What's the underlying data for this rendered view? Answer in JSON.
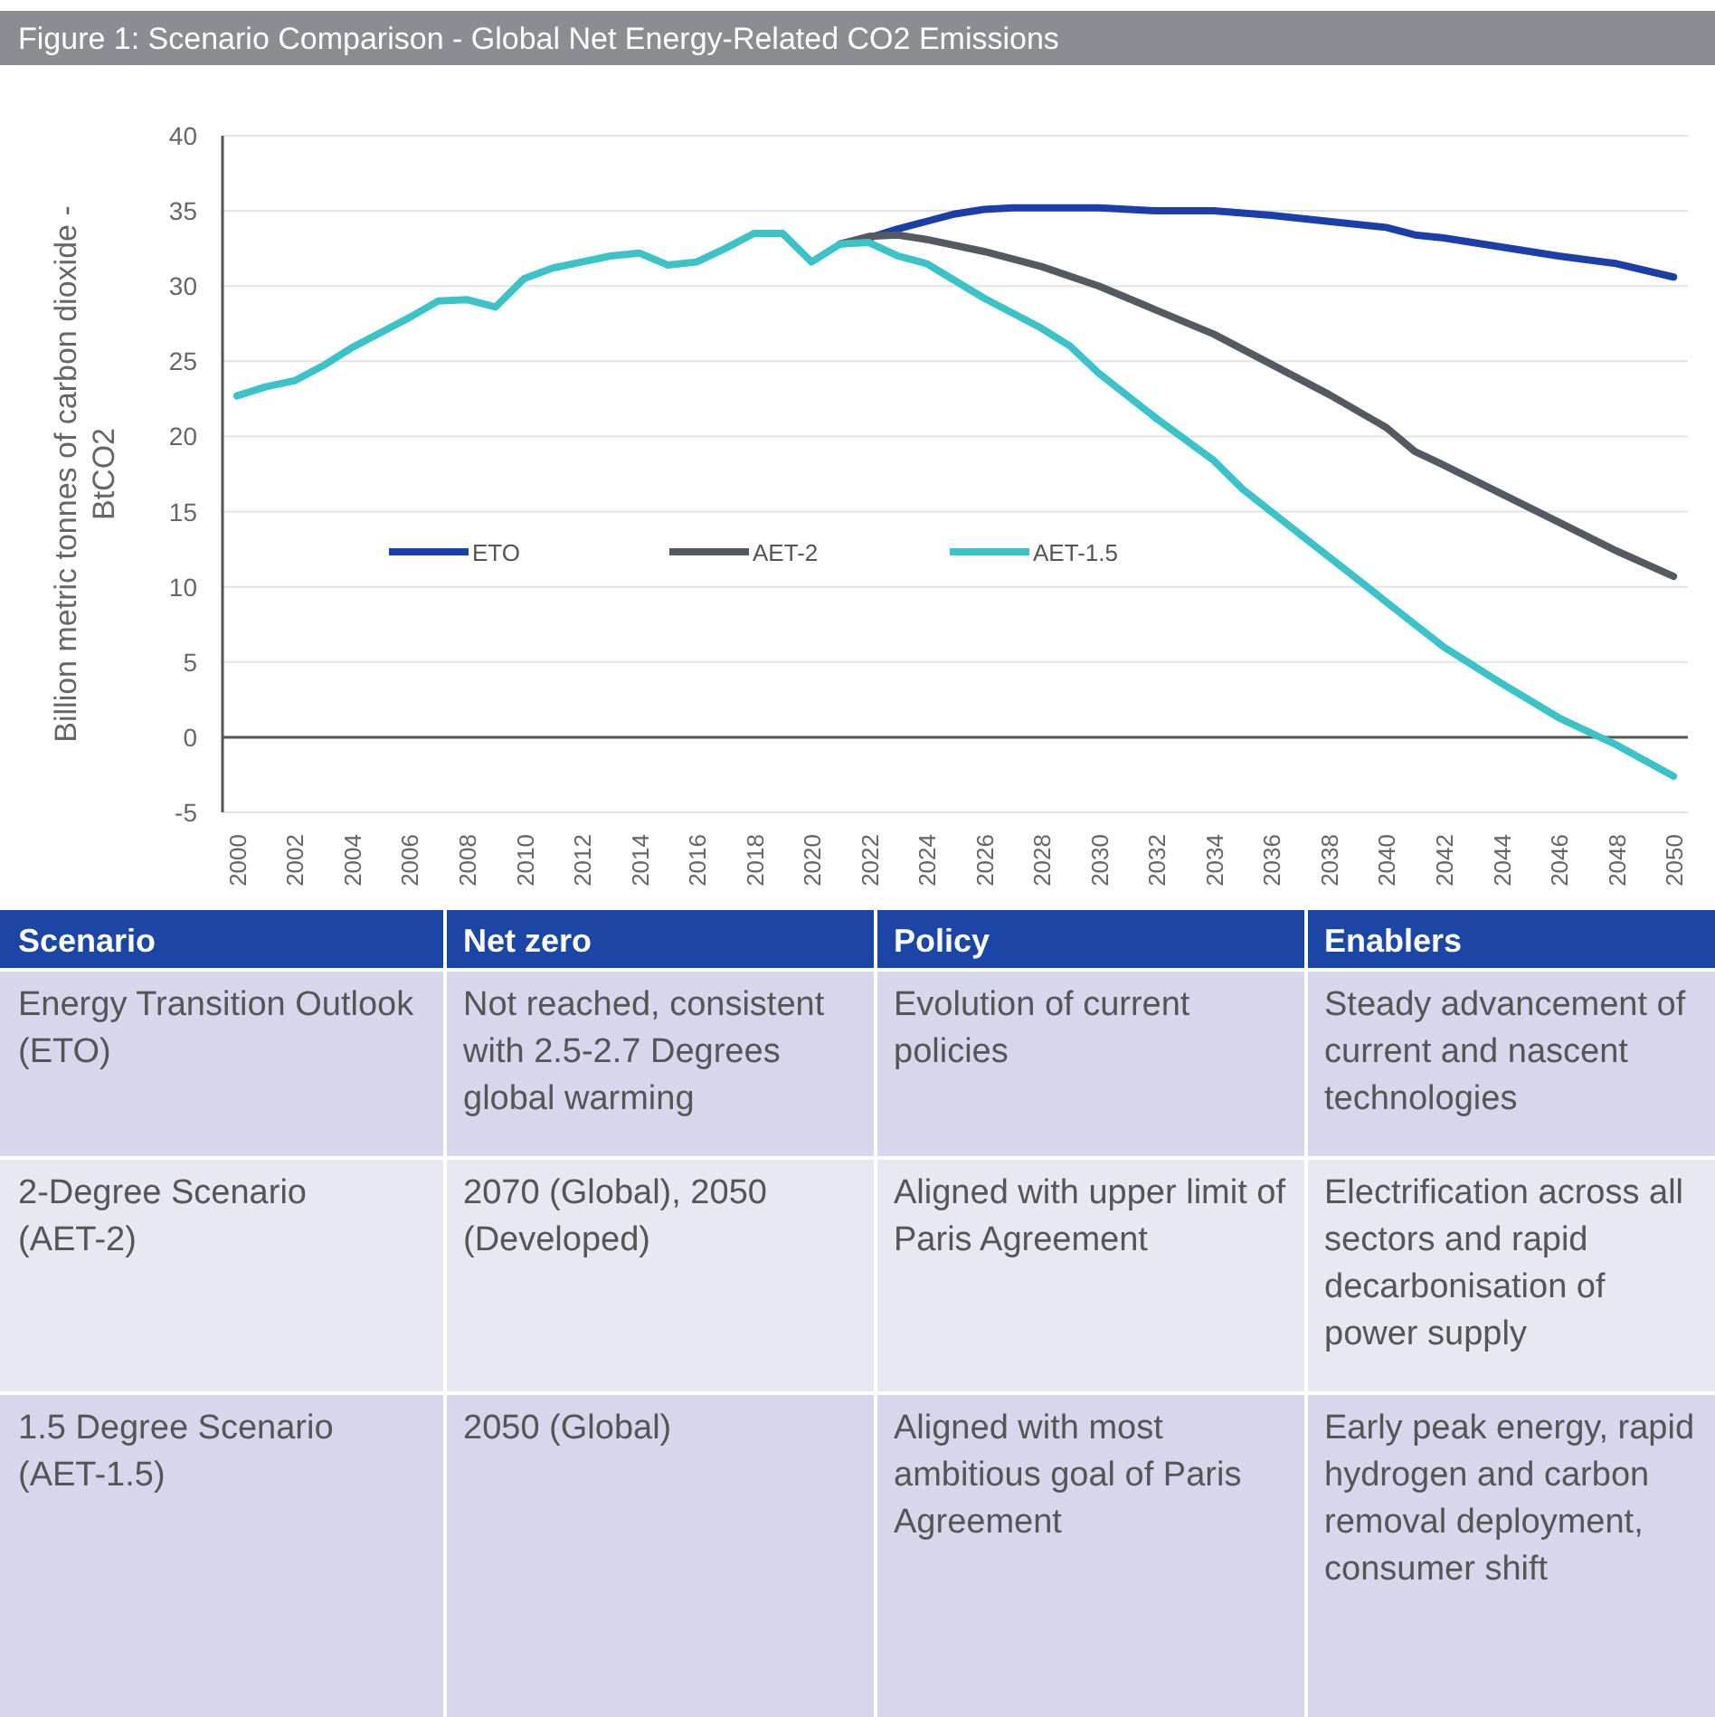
{
  "chart_data": [
    {
      "type": "line",
      "title": "Figure 1: Scenario Comparison - Global Net Energy-Related CO2 Emissions",
      "ylabel": "Billion metric tonnes of carbon dioxide - BtCO2",
      "xlim": [
        1999.5,
        2050.5
      ],
      "xticks": [
        2000,
        2002,
        2004,
        2006,
        2008,
        2010,
        2012,
        2014,
        2016,
        2018,
        2020,
        2022,
        2024,
        2026,
        2028,
        2030,
        2032,
        2034,
        2036,
        2038,
        2040,
        2042,
        2044,
        2046,
        2048,
        2050
      ],
      "ylim": [
        -5,
        40
      ],
      "yticks": [
        -5,
        0,
        5,
        10,
        15,
        20,
        25,
        30,
        35,
        40
      ],
      "grid": "y",
      "legend": "center",
      "line_style": "solid",
      "marker": "none",
      "ref_lines": [
        {
          "axis": "y",
          "value": 0,
          "label": null,
          "color": "#555555"
        }
      ],
      "series": [
        {
          "name": "ETO",
          "color": "#1a3fa8",
          "x": [
            2021,
            2022,
            2023,
            2024,
            2025,
            2026,
            2027,
            2028,
            2030,
            2032,
            2034,
            2036,
            2038,
            2040,
            2041,
            2042,
            2044,
            2046,
            2048,
            2050
          ],
          "values": [
            32.8,
            33.2,
            33.8,
            34.3,
            34.8,
            35.1,
            35.2,
            35.2,
            35.2,
            35.0,
            35.0,
            34.7,
            34.3,
            33.9,
            33.4,
            33.2,
            32.6,
            32.0,
            31.5,
            30.6
          ]
        },
        {
          "name": "AET-2",
          "color": "#545a62",
          "x": [
            2021,
            2022,
            2023,
            2024,
            2026,
            2028,
            2030,
            2032,
            2034,
            2036,
            2038,
            2040,
            2041,
            2042,
            2044,
            2046,
            2048,
            2050
          ],
          "values": [
            32.8,
            33.3,
            33.4,
            33.1,
            32.3,
            31.3,
            30.0,
            28.4,
            26.8,
            24.8,
            22.8,
            20.6,
            19.0,
            18.1,
            16.2,
            14.3,
            12.4,
            10.7
          ]
        },
        {
          "name": "AET-1.5",
          "color": "#3cc3c8",
          "x": [
            2000,
            2001,
            2002,
            2003,
            2004,
            2005,
            2006,
            2007,
            2008,
            2009,
            2010,
            2011,
            2012,
            2013,
            2014,
            2015,
            2016,
            2017,
            2018,
            2019,
            2020,
            2021,
            2022,
            2023,
            2024,
            2026,
            2028,
            2029,
            2030,
            2032,
            2034,
            2035,
            2036,
            2038,
            2040,
            2042,
            2044,
            2046,
            2048,
            2050
          ],
          "values": [
            22.7,
            23.3,
            23.7,
            24.7,
            25.9,
            26.9,
            27.9,
            29.0,
            29.1,
            28.6,
            30.5,
            31.2,
            31.6,
            32.0,
            32.2,
            31.4,
            31.6,
            32.5,
            33.5,
            33.5,
            31.6,
            32.8,
            32.9,
            32.0,
            31.5,
            29.2,
            27.2,
            26.0,
            24.2,
            21.2,
            18.4,
            16.5,
            15.0,
            12.0,
            9.0,
            6.0,
            3.6,
            1.3,
            -0.5,
            -2.6
          ]
        }
      ]
    },
    {
      "type": "other",
      "categories": [
        "Scenario",
        "Net zero",
        "Policy",
        "Enablers"
      ],
      "cell_labels": [
        [
          "Energy Transition Outlook (ETO)",
          "Not reached, consistent with 2.5-2.7 Degrees global warming",
          "Evolution of current policies",
          "Steady advancement of current and nascent technologies"
        ],
        [
          "2-Degree Scenario (AET-2)",
          "2070 (Global), 2050 (Developed)",
          "Aligned with upper limit of Paris Agreement",
          "Electrification across all sectors and rapid decarbonisation of power supply"
        ],
        [
          "1.5 Degree Scenario (AET-1.5)",
          "2050 (Global)",
          "Aligned with most ambitious goal of Paris Agreement",
          "Early peak energy, rapid hydrogen and carbon removal deployment, consumer shift"
        ]
      ]
    }
  ]
}
